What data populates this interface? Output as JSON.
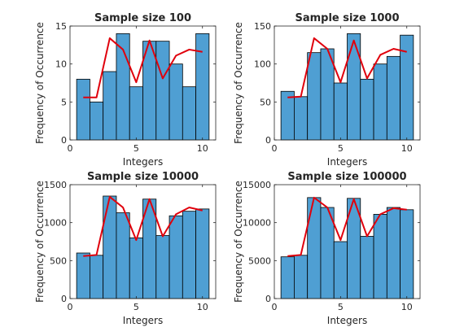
{
  "chart_data": [
    {
      "type": "bar",
      "title": "Sample size 100",
      "xlabel": "Integers",
      "ylabel": "Frequency of Occurrence",
      "xlim": [
        0,
        11
      ],
      "ylim": [
        0,
        15
      ],
      "xticks": [
        0,
        5,
        10
      ],
      "yticks": [
        0,
        5,
        10,
        15
      ],
      "ytick_labels": [
        "0",
        "5",
        "10",
        "15"
      ],
      "categories": [
        1,
        2,
        3,
        4,
        5,
        6,
        7,
        8,
        9,
        10
      ],
      "values": [
        8,
        5,
        9,
        14,
        7,
        13,
        13,
        10,
        7,
        14
      ],
      "line": {
        "x": [
          1,
          2,
          3,
          4,
          5,
          6,
          7,
          8,
          9,
          10
        ],
        "y": [
          5.6,
          5.6,
          13.4,
          11.9,
          7.6,
          13.1,
          8.1,
          11.1,
          11.9,
          11.6
        ]
      }
    },
    {
      "type": "bar",
      "title": "Sample size 1000",
      "xlabel": "Integers",
      "ylabel": "Frequency of Occurrence",
      "xlim": [
        0,
        11
      ],
      "ylim": [
        0,
        150
      ],
      "xticks": [
        0,
        5,
        10
      ],
      "yticks": [
        0,
        50,
        100,
        150
      ],
      "ytick_labels": [
        "0",
        "50",
        "100",
        "150"
      ],
      "categories": [
        1,
        2,
        3,
        4,
        5,
        6,
        7,
        8,
        9,
        10
      ],
      "values": [
        64,
        57,
        115,
        120,
        75,
        140,
        80,
        100,
        110,
        138
      ],
      "line": {
        "x": [
          1,
          2,
          3,
          4,
          5,
          6,
          7,
          8,
          9,
          10
        ],
        "y": [
          56,
          57,
          134,
          120,
          76,
          131,
          81,
          112,
          120,
          116
        ]
      }
    },
    {
      "type": "bar",
      "title": "Sample size 10000",
      "xlabel": "Integers",
      "ylabel": "Frequency of Occurrence",
      "xlim": [
        0,
        11
      ],
      "ylim": [
        0,
        1500
      ],
      "xticks": [
        0,
        5,
        10
      ],
      "yticks": [
        0,
        500,
        1000,
        1500
      ],
      "ytick_labels": [
        "0",
        "500",
        "1000",
        "1500"
      ],
      "categories": [
        1,
        2,
        3,
        4,
        5,
        6,
        7,
        8,
        9,
        10
      ],
      "values": [
        600,
        570,
        1350,
        1130,
        800,
        1310,
        830,
        1090,
        1150,
        1180
      ],
      "line": {
        "x": [
          1,
          2,
          3,
          4,
          5,
          6,
          7,
          8,
          9,
          10
        ],
        "y": [
          560,
          575,
          1340,
          1200,
          770,
          1310,
          820,
          1110,
          1200,
          1160
        ]
      }
    },
    {
      "type": "bar",
      "title": "Sample size 100000",
      "xlabel": "Integers",
      "ylabel": "Frequency of Occurrence",
      "xlim": [
        0,
        11
      ],
      "ylim": [
        0,
        15000
      ],
      "xticks": [
        0,
        5,
        10
      ],
      "yticks": [
        0,
        5000,
        10000,
        15000
      ],
      "ytick_labels": [
        "0",
        "5000",
        "10000",
        "15000"
      ],
      "categories": [
        1,
        2,
        3,
        4,
        5,
        6,
        7,
        8,
        9,
        10
      ],
      "values": [
        5500,
        5700,
        13300,
        12000,
        7500,
        13200,
        8200,
        11100,
        12000,
        11700
      ],
      "line": {
        "x": [
          1,
          2,
          3,
          4,
          5,
          6,
          7,
          8,
          9,
          10
        ],
        "y": [
          5600,
          5750,
          13300,
          12000,
          7700,
          13100,
          8200,
          11100,
          11900,
          11700
        ]
      }
    }
  ],
  "colors": {
    "bar_fill": "#4f9fd3",
    "bar_edge": "#000000",
    "line": "#e0000c",
    "axis": "#262626"
  }
}
